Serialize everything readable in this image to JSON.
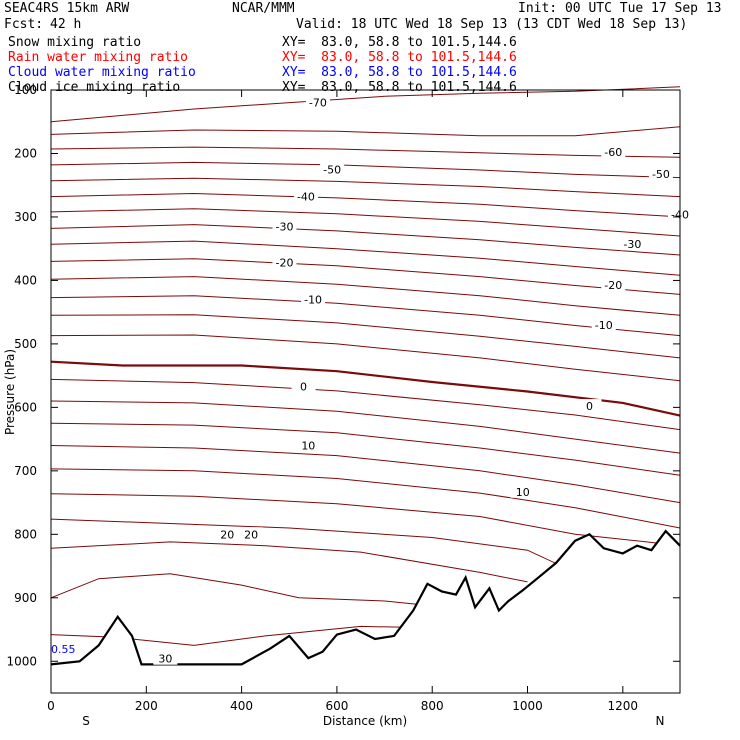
{
  "header": {
    "model": "SEAC4RS 15km ARW",
    "center": "NCAR/MMM",
    "init": "Init: 00 UTC Tue 17 Sep 13",
    "fcst_label": "Fcst:",
    "fcst_value": "42 h",
    "valid": "Valid: 18 UTC Wed 18 Sep 13 (13 CDT Wed 18 Sep 13)"
  },
  "legend": [
    {
      "label": "Snow mixing ratio",
      "xy": "XY=  83.0, 58.8 to 101.5,144.6",
      "color": "#000000"
    },
    {
      "label": "Rain water mixing ratio",
      "xy": "XY=  83.0, 58.8 to 101.5,144.6",
      "color": "#ff0000"
    },
    {
      "label": "Cloud water mixing ratio",
      "xy": "XY=  83.0, 58.8 to 101.5,144.6",
      "color": "#0000ff"
    },
    {
      "label": "Cloud ice mixing ratio",
      "xy": "XY=  83.0, 58.8 to 101.5,144.6",
      "color": "#000000"
    }
  ],
  "chart_data": {
    "type": "line",
    "subtype": "vertical cross-section, temperature contours",
    "xlabel": "Distance (km)",
    "ylabel": "Pressure (hPa)",
    "xlim": [
      0,
      1320
    ],
    "ylim": [
      1050,
      100
    ],
    "x_ticks": [
      "0",
      "200",
      "400",
      "600",
      "800",
      "1000",
      "1200"
    ],
    "y_ticks": [
      "100",
      "200",
      "300",
      "400",
      "500",
      "600",
      "700",
      "800",
      "900",
      "1000"
    ],
    "x_end_labels": {
      "left": "S",
      "right": "N"
    },
    "contour_color": "#7b0a0a",
    "terrain_color": "#000000",
    "contour_labels": [
      "-70",
      "-60",
      "-50",
      "-50",
      "-40",
      "-40",
      "-30",
      "-30",
      "-20",
      "-20",
      "-10",
      "-10",
      "0",
      "0",
      "10",
      "10",
      "20",
      "20",
      "30"
    ],
    "left_edge_label": "0.55",
    "contours": [
      {
        "level": "-70",
        "points": [
          [
            0,
            150
          ],
          [
            300,
            130
          ],
          [
            700,
            110
          ],
          [
            900,
            105
          ],
          [
            1100,
            102
          ],
          [
            1320,
            95
          ]
        ]
      },
      {
        "level": "-70",
        "points": [
          [
            0,
            170
          ],
          [
            300,
            163
          ],
          [
            600,
            165
          ],
          [
            900,
            172
          ],
          [
            1100,
            172
          ],
          [
            1320,
            158
          ]
        ]
      },
      {
        "level": "-60",
        "points": [
          [
            0,
            193
          ],
          [
            300,
            190
          ],
          [
            600,
            193
          ],
          [
            900,
            199
          ],
          [
            1100,
            203
          ],
          [
            1320,
            206
          ]
        ]
      },
      {
        "level": "-50",
        "points": [
          [
            0,
            218
          ],
          [
            300,
            214
          ],
          [
            600,
            218
          ],
          [
            900,
            226
          ],
          [
            1100,
            233
          ],
          [
            1320,
            238
          ]
        ]
      },
      {
        "level": "-50",
        "points": [
          [
            0,
            243
          ],
          [
            300,
            239
          ],
          [
            600,
            244
          ],
          [
            900,
            252
          ],
          [
            1100,
            260
          ],
          [
            1320,
            268
          ]
        ]
      },
      {
        "level": "-40",
        "points": [
          [
            0,
            268
          ],
          [
            300,
            263
          ],
          [
            600,
            270
          ],
          [
            900,
            280
          ],
          [
            1100,
            290
          ],
          [
            1320,
            300
          ]
        ]
      },
      {
        "level": "-40",
        "points": [
          [
            0,
            292
          ],
          [
            300,
            287
          ],
          [
            600,
            295
          ],
          [
            900,
            307
          ],
          [
            1100,
            318
          ],
          [
            1320,
            330
          ]
        ]
      },
      {
        "level": "-30",
        "points": [
          [
            0,
            318
          ],
          [
            300,
            312
          ],
          [
            600,
            322
          ],
          [
            900,
            336
          ],
          [
            1100,
            348
          ],
          [
            1320,
            360
          ]
        ]
      },
      {
        "level": "-30",
        "points": [
          [
            0,
            343
          ],
          [
            300,
            338
          ],
          [
            600,
            350
          ],
          [
            900,
            365
          ],
          [
            1100,
            378
          ],
          [
            1320,
            392
          ]
        ]
      },
      {
        "level": "-20",
        "points": [
          [
            0,
            370
          ],
          [
            300,
            366
          ],
          [
            600,
            377
          ],
          [
            900,
            394
          ],
          [
            1100,
            408
          ],
          [
            1320,
            422
          ]
        ]
      },
      {
        "level": "-20",
        "points": [
          [
            0,
            398
          ],
          [
            300,
            394
          ],
          [
            600,
            406
          ],
          [
            900,
            424
          ],
          [
            1100,
            440
          ],
          [
            1320,
            455
          ]
        ]
      },
      {
        "level": "-10",
        "points": [
          [
            0,
            427
          ],
          [
            300,
            424
          ],
          [
            600,
            436
          ],
          [
            900,
            455
          ],
          [
            1100,
            471
          ],
          [
            1320,
            487
          ]
        ]
      },
      {
        "level": "-10",
        "points": [
          [
            0,
            455
          ],
          [
            300,
            454
          ],
          [
            600,
            467
          ],
          [
            900,
            488
          ],
          [
            1100,
            504
          ],
          [
            1320,
            522
          ]
        ]
      },
      {
        "level": "-10",
        "points": [
          [
            0,
            487
          ],
          [
            300,
            486
          ],
          [
            600,
            500
          ],
          [
            900,
            522
          ],
          [
            1100,
            540
          ],
          [
            1320,
            558
          ]
        ]
      },
      {
        "level": "0",
        "points": [
          [
            0,
            528
          ],
          [
            150,
            534
          ],
          [
            400,
            534
          ],
          [
            600,
            543
          ],
          [
            800,
            560
          ],
          [
            1000,
            575
          ],
          [
            1200,
            593
          ],
          [
            1320,
            613
          ]
        ]
      },
      {
        "level": "0",
        "points": [
          [
            0,
            556
          ],
          [
            300,
            561
          ],
          [
            600,
            574
          ],
          [
            900,
            596
          ],
          [
            1100,
            612
          ],
          [
            1320,
            635
          ]
        ]
      },
      {
        "level": "10",
        "points": [
          [
            0,
            590
          ],
          [
            300,
            593
          ],
          [
            600,
            606
          ],
          [
            900,
            630
          ],
          [
            1100,
            650
          ],
          [
            1320,
            672
          ]
        ]
      },
      {
        "level": "10",
        "points": [
          [
            0,
            625
          ],
          [
            300,
            628
          ],
          [
            600,
            640
          ],
          [
            900,
            664
          ],
          [
            1100,
            683
          ],
          [
            1320,
            707
          ]
        ]
      },
      {
        "level": "10",
        "points": [
          [
            0,
            660
          ],
          [
            300,
            664
          ],
          [
            600,
            676
          ],
          [
            900,
            700
          ],
          [
            1100,
            722
          ],
          [
            1320,
            750
          ]
        ]
      },
      {
        "level": "20",
        "points": [
          [
            0,
            697
          ],
          [
            300,
            700
          ],
          [
            600,
            712
          ],
          [
            900,
            735
          ],
          [
            1100,
            758
          ],
          [
            1320,
            790
          ]
        ]
      },
      {
        "level": "20",
        "points": [
          [
            0,
            736
          ],
          [
            300,
            740
          ],
          [
            600,
            752
          ],
          [
            900,
            772
          ],
          [
            1100,
            800
          ],
          [
            1250,
            812
          ],
          [
            1320,
            818
          ]
        ]
      },
      {
        "level": "20",
        "points": [
          [
            0,
            776
          ],
          [
            250,
            783
          ],
          [
            500,
            790
          ],
          [
            800,
            805
          ],
          [
            1000,
            825
          ],
          [
            1100,
            860
          ],
          [
            1250,
            830
          ]
        ]
      },
      {
        "level": "30",
        "points": [
          [
            0,
            822
          ],
          [
            250,
            812
          ],
          [
            450,
            818
          ],
          [
            650,
            828
          ],
          [
            900,
            860
          ],
          [
            1000,
            875
          ]
        ]
      },
      {
        "level": "30",
        "points": [
          [
            0,
            900
          ],
          [
            100,
            870
          ],
          [
            250,
            862
          ],
          [
            400,
            880
          ],
          [
            520,
            900
          ],
          [
            700,
            905
          ],
          [
            900,
            920
          ]
        ]
      },
      {
        "level": "30",
        "points": [
          [
            0,
            958
          ],
          [
            130,
            962
          ],
          [
            300,
            975
          ],
          [
            450,
            960
          ],
          [
            650,
            945
          ],
          [
            850,
            948
          ]
        ]
      }
    ],
    "zero_isotherm": [
      [
        0,
        528
      ],
      [
        150,
        534
      ],
      [
        400,
        534
      ],
      [
        600,
        543
      ],
      [
        800,
        560
      ],
      [
        1000,
        575
      ],
      [
        1200,
        593
      ],
      [
        1320,
        613
      ]
    ],
    "terrain": [
      [
        0,
        1005
      ],
      [
        60,
        1000
      ],
      [
        100,
        975
      ],
      [
        140,
        930
      ],
      [
        170,
        960
      ],
      [
        190,
        1005
      ],
      [
        300,
        1005
      ],
      [
        400,
        1005
      ],
      [
        460,
        980
      ],
      [
        500,
        960
      ],
      [
        540,
        995
      ],
      [
        570,
        985
      ],
      [
        600,
        958
      ],
      [
        640,
        950
      ],
      [
        680,
        965
      ],
      [
        720,
        960
      ],
      [
        760,
        920
      ],
      [
        790,
        878
      ],
      [
        820,
        890
      ],
      [
        850,
        895
      ],
      [
        870,
        868
      ],
      [
        890,
        915
      ],
      [
        920,
        885
      ],
      [
        940,
        920
      ],
      [
        960,
        905
      ],
      [
        990,
        888
      ],
      [
        1020,
        870
      ],
      [
        1060,
        845
      ],
      [
        1100,
        810
      ],
      [
        1130,
        800
      ],
      [
        1160,
        822
      ],
      [
        1200,
        830
      ],
      [
        1230,
        818
      ],
      [
        1260,
        825
      ],
      [
        1290,
        795
      ],
      [
        1320,
        818
      ]
    ]
  }
}
